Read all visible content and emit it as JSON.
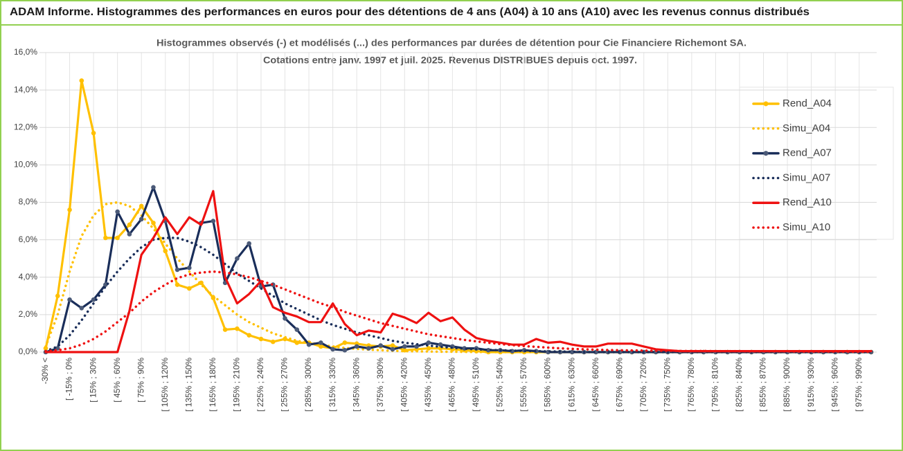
{
  "chart_data": {
    "type": "line",
    "header": "ADAM Informe. Histogrammes des performances en euros pour des détentions de 4 ans (A04) à 10 ans (A10) avec les revenus connus distribués",
    "title": [
      "Histogrammes observés (-) et modélisés (...) des performances par durées de détention pour Cie Financiere Richemont SA.",
      "Cotations entre janv. 1997 et juil. 2025. Revenus DISTRIBUES depuis oct. 1997."
    ],
    "categories": [
      "-30% <",
      null,
      "[ -15% ; 0%",
      null,
      "[ 15% ; 30%",
      null,
      "[ 45% ; 60%",
      null,
      "[ 75% ; 90%",
      null,
      "[ 105% ; 120%",
      null,
      "[ 135% ; 150%",
      null,
      "[ 165% ; 180%",
      null,
      "[ 195% ; 210%",
      null,
      "[ 225% ; 240%",
      null,
      "[ 255% ; 270%",
      null,
      "[ 285% ; 300%",
      null,
      "[ 315% ; 330%",
      null,
      "[ 345% ; 360%",
      null,
      "[ 375% ; 390%",
      null,
      "[ 405% ; 420%",
      null,
      "[ 435% ; 450%",
      null,
      "[ 465% ; 480%",
      null,
      "[ 495% ; 510%",
      null,
      "[ 525% ; 540%",
      null,
      "[ 555% ; 570%",
      null,
      "[ 585% ; 600%",
      null,
      "[ 615% ; 630%",
      null,
      "[ 645% ; 660%",
      null,
      "[ 675% ; 690%",
      null,
      "[ 705% ; 720%",
      null,
      "[ 735% ; 750%",
      null,
      "[ 765% ; 780%",
      null,
      "[ 795% ; 810%",
      null,
      "[ 825% ; 840%",
      null,
      "[ 855% ; 870%",
      null,
      "[ 885% ; 900%",
      null,
      "[ 915% ; 930%",
      null,
      "[ 945% ; 960%",
      null,
      "[ 975% ; 990%",
      null
    ],
    "ylim": [
      0,
      16
    ],
    "yticks": [
      {
        "value": 0,
        "label": "0,0%"
      },
      {
        "value": 2,
        "label": "2,0%"
      },
      {
        "value": 4,
        "label": "4,0%"
      },
      {
        "value": 6,
        "label": "6,0%"
      },
      {
        "value": 8,
        "label": "8,0%"
      },
      {
        "value": 10,
        "label": "10,0%"
      },
      {
        "value": 12,
        "label": "12,0%"
      },
      {
        "value": 14,
        "label": "14,0%"
      },
      {
        "value": 16,
        "label": "16,0%"
      }
    ],
    "grid": true,
    "legend": "right",
    "series": [
      {
        "name": "Rend_A04",
        "color": "#ffc000",
        "style": "solid",
        "marker": true,
        "values": [
          0.2,
          3.0,
          7.6,
          14.5,
          11.7,
          6.1,
          6.1,
          6.8,
          7.8,
          6.9,
          5.4,
          3.6,
          3.4,
          3.7,
          2.9,
          1.2,
          1.25,
          0.9,
          0.7,
          0.55,
          0.7,
          0.5,
          0.5,
          0.3,
          0.2,
          0.5,
          0.45,
          0.35,
          0.3,
          0.35,
          0.1,
          0.15,
          0.2,
          0.2,
          0.15,
          0.1,
          0.05,
          0,
          0,
          0,
          0,
          0,
          0,
          0,
          0,
          0,
          0,
          0,
          0,
          0,
          0,
          0,
          0,
          0,
          0,
          0,
          0,
          0,
          0,
          0,
          0,
          0,
          0,
          0,
          0,
          0,
          0,
          0,
          0,
          0
        ]
      },
      {
        "name": "Simu_A04",
        "color": "#ffc000",
        "style": "dotted",
        "marker": false,
        "values": [
          0.3,
          2.0,
          4.3,
          6.2,
          7.3,
          7.9,
          8.0,
          7.8,
          7.3,
          6.6,
          5.8,
          5.0,
          4.3,
          3.6,
          3.0,
          2.5,
          2.0,
          1.6,
          1.3,
          1.0,
          0.8,
          0.6,
          0.5,
          0.4,
          0.3,
          0.22,
          0.17,
          0.13,
          0.1,
          0.07,
          0.05,
          0.04,
          0.03,
          0.02,
          0.02,
          0.01,
          0.01,
          0,
          0,
          0,
          0,
          0,
          0,
          0,
          0,
          0,
          0,
          0,
          0,
          0,
          0,
          0,
          0,
          0,
          0,
          0,
          0,
          0,
          0,
          0,
          0,
          0,
          0,
          0,
          0,
          0,
          0,
          0,
          0,
          0
        ]
      },
      {
        "name": "Rend_A07",
        "color": "#1a2e5a",
        "style": "solid",
        "marker": true,
        "values": [
          0,
          0.2,
          2.8,
          2.35,
          2.8,
          3.6,
          7.5,
          6.3,
          7.1,
          8.8,
          7.0,
          4.4,
          4.5,
          6.9,
          7.0,
          3.7,
          5.0,
          5.8,
          3.5,
          3.6,
          1.8,
          1.2,
          0.4,
          0.5,
          0.15,
          0.1,
          0.3,
          0.2,
          0.35,
          0.15,
          0.3,
          0.3,
          0.5,
          0.4,
          0.3,
          0.2,
          0.2,
          0.1,
          0.1,
          0.05,
          0.1,
          0.05,
          0,
          0,
          0,
          0,
          0,
          0,
          0,
          0,
          0,
          0,
          0,
          0,
          0,
          0,
          0,
          0,
          0,
          0,
          0,
          0,
          0,
          0,
          0,
          0,
          0,
          0,
          0,
          0
        ]
      },
      {
        "name": "Simu_A07",
        "color": "#1a2e5a",
        "style": "dotted",
        "marker": false,
        "values": [
          0.05,
          0.3,
          0.9,
          1.7,
          2.6,
          3.5,
          4.3,
          5.0,
          5.6,
          6.0,
          6.1,
          6.1,
          5.9,
          5.6,
          5.2,
          4.7,
          4.2,
          3.8,
          3.4,
          3.0,
          2.6,
          2.3,
          2.0,
          1.7,
          1.45,
          1.25,
          1.05,
          0.9,
          0.75,
          0.6,
          0.5,
          0.42,
          0.35,
          0.28,
          0.23,
          0.18,
          0.15,
          0.12,
          0.1,
          0.08,
          0.06,
          0.05,
          0.04,
          0.03,
          0.02,
          0,
          0,
          0,
          0,
          0,
          0,
          0,
          0,
          0,
          0,
          0,
          0,
          0,
          0,
          0,
          0,
          0,
          0,
          0,
          0,
          0,
          0,
          0,
          0,
          0
        ]
      },
      {
        "name": "Rend_A10",
        "color": "#ee1111",
        "style": "solid",
        "marker": false,
        "values": [
          0,
          0,
          0,
          0,
          0,
          0,
          0,
          2.2,
          5.2,
          6.1,
          7.2,
          6.3,
          7.2,
          6.8,
          8.6,
          4.0,
          2.6,
          3.1,
          3.8,
          2.4,
          2.1,
          1.9,
          1.6,
          1.6,
          2.6,
          1.5,
          0.9,
          1.15,
          1.05,
          2.05,
          1.85,
          1.55,
          2.1,
          1.65,
          1.85,
          1.2,
          0.75,
          0.6,
          0.5,
          0.4,
          0.4,
          0.7,
          0.5,
          0.55,
          0.4,
          0.3,
          0.3,
          0.45,
          0.45,
          0.45,
          0.3,
          0.15,
          0.1,
          0.05,
          0.05,
          0.05,
          0.05,
          0.05,
          0.05,
          0.05,
          0.05,
          0.05,
          0.05,
          0.05,
          0.05,
          0.05,
          0.05,
          0.05,
          0.05,
          0.05
        ]
      },
      {
        "name": "Simu_A10",
        "color": "#ee1111",
        "style": "dotted",
        "marker": false,
        "values": [
          0.05,
          0.1,
          0.2,
          0.4,
          0.7,
          1.1,
          1.6,
          2.1,
          2.7,
          3.2,
          3.6,
          3.95,
          4.15,
          4.25,
          4.3,
          4.25,
          4.15,
          4.0,
          3.8,
          3.6,
          3.35,
          3.1,
          2.85,
          2.6,
          2.4,
          2.15,
          1.95,
          1.75,
          1.55,
          1.4,
          1.25,
          1.1,
          0.95,
          0.85,
          0.75,
          0.65,
          0.57,
          0.5,
          0.43,
          0.37,
          0.32,
          0.28,
          0.24,
          0.2,
          0.17,
          0.15,
          0.13,
          0.11,
          0.1,
          0.09,
          0.08,
          0.07,
          0.07,
          0.06,
          0.06,
          0.06,
          0.05,
          0.05,
          0.05,
          0.04,
          0.04,
          0.04,
          0.04,
          0.03,
          0.03,
          0.03,
          0.03,
          0.02,
          0.02,
          0.02
        ]
      }
    ]
  }
}
